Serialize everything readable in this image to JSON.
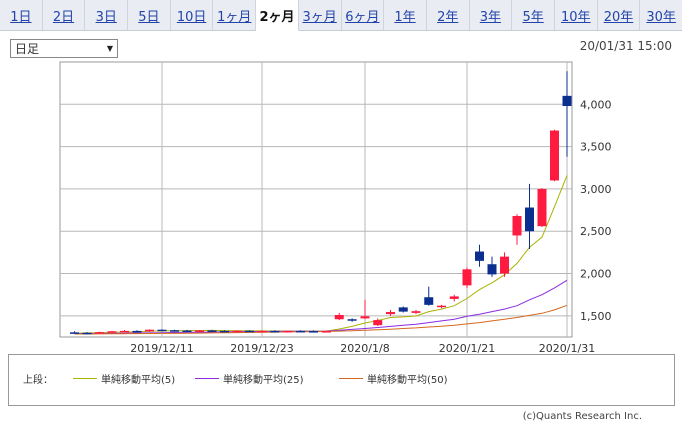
{
  "tabs": [
    {
      "label": "1日",
      "active": false
    },
    {
      "label": "2日",
      "active": false
    },
    {
      "label": "3日",
      "active": false
    },
    {
      "label": "5日",
      "active": false
    },
    {
      "label": "10日",
      "active": false
    },
    {
      "label": "1ヶ月",
      "active": false
    },
    {
      "label": "2ヶ月",
      "active": true
    },
    {
      "label": "3ヶ月",
      "active": false
    },
    {
      "label": "6ヶ月",
      "active": false
    },
    {
      "label": "1年",
      "active": false
    },
    {
      "label": "2年",
      "active": false
    },
    {
      "label": "3年",
      "active": false
    },
    {
      "label": "5年",
      "active": false
    },
    {
      "label": "10年",
      "active": false
    },
    {
      "label": "20年",
      "active": false
    },
    {
      "label": "30年",
      "active": false
    }
  ],
  "period_select": {
    "value": "日足"
  },
  "timestamp": "20/01/31 15:00",
  "legend": {
    "prefix": "上段：",
    "items": [
      {
        "label": "単純移動平均(5)",
        "color": "#a8b400"
      },
      {
        "label": "単純移動平均(25)",
        "color": "#8a2be2"
      },
      {
        "label": "単純移動平均(50)",
        "color": "#d2691e"
      }
    ]
  },
  "copyright": "(c)Quants Research Inc.",
  "colors": {
    "up": "#ff1a40",
    "down": "#0a2f8f",
    "grid": "#b8b8b8"
  },
  "chart_data": {
    "type": "candlestick",
    "x_tick_labels": [
      "2019/12/11",
      "2019/12/23",
      "2020/1/8",
      "2020/1/21",
      "2020/1/31"
    ],
    "x_tick_dates": [
      "2019/12/11",
      "2019/12/23",
      "2020/1/8",
      "2020/1/21",
      "2020/1/31"
    ],
    "y_ticks": [
      1500,
      2000,
      2500,
      3000,
      3500,
      4000
    ],
    "y_tick_labels": [
      "1,500",
      "2,000",
      "2,500",
      "3,000",
      "3,500",
      "4,000"
    ],
    "ylim": [
      1250,
      4500
    ],
    "grid": true,
    "candles": [
      {
        "date": "2019/12/02",
        "open": 1305,
        "high": 1318,
        "low": 1298,
        "close": 1300
      },
      {
        "date": "2019/12/03",
        "open": 1300,
        "high": 1308,
        "low": 1292,
        "close": 1296
      },
      {
        "date": "2019/12/04",
        "open": 1296,
        "high": 1312,
        "low": 1292,
        "close": 1308
      },
      {
        "date": "2019/12/05",
        "open": 1308,
        "high": 1322,
        "low": 1300,
        "close": 1318
      },
      {
        "date": "2019/12/06",
        "open": 1318,
        "high": 1332,
        "low": 1310,
        "close": 1322
      },
      {
        "date": "2019/12/09",
        "open": 1322,
        "high": 1330,
        "low": 1312,
        "close": 1316
      },
      {
        "date": "2019/12/10",
        "open": 1316,
        "high": 1340,
        "low": 1312,
        "close": 1336
      },
      {
        "date": "2019/12/11",
        "open": 1336,
        "high": 1342,
        "low": 1324,
        "close": 1330
      },
      {
        "date": "2019/12/12",
        "open": 1330,
        "high": 1336,
        "low": 1322,
        "close": 1326
      },
      {
        "date": "2019/12/13",
        "open": 1326,
        "high": 1334,
        "low": 1318,
        "close": 1322
      },
      {
        "date": "2019/12/16",
        "open": 1322,
        "high": 1332,
        "low": 1316,
        "close": 1328
      },
      {
        "date": "2019/12/17",
        "open": 1328,
        "high": 1334,
        "low": 1318,
        "close": 1322
      },
      {
        "date": "2019/12/18",
        "open": 1322,
        "high": 1330,
        "low": 1314,
        "close": 1318
      },
      {
        "date": "2019/12/19",
        "open": 1318,
        "high": 1328,
        "low": 1312,
        "close": 1324
      },
      {
        "date": "2019/12/20",
        "open": 1324,
        "high": 1330,
        "low": 1316,
        "close": 1320
      },
      {
        "date": "2019/12/23",
        "open": 1320,
        "high": 1328,
        "low": 1314,
        "close": 1322
      },
      {
        "date": "2019/12/24",
        "open": 1322,
        "high": 1330,
        "low": 1316,
        "close": 1318
      },
      {
        "date": "2019/12/25",
        "open": 1318,
        "high": 1326,
        "low": 1312,
        "close": 1322
      },
      {
        "date": "2019/12/26",
        "open": 1322,
        "high": 1330,
        "low": 1316,
        "close": 1320
      },
      {
        "date": "2019/12/27",
        "open": 1320,
        "high": 1328,
        "low": 1314,
        "close": 1318
      },
      {
        "date": "2019/12/30",
        "open": 1318,
        "high": 1326,
        "low": 1312,
        "close": 1320
      },
      {
        "date": "2020/1/6",
        "open": 1460,
        "high": 1535,
        "low": 1450,
        "close": 1510
      },
      {
        "date": "2020/1/7",
        "open": 1460,
        "high": 1470,
        "low": 1430,
        "close": 1445
      },
      {
        "date": "2020/1/8",
        "open": 1470,
        "high": 1690,
        "low": 1460,
        "close": 1495
      },
      {
        "date": "2020/1/9",
        "open": 1390,
        "high": 1470,
        "low": 1380,
        "close": 1450
      },
      {
        "date": "2020/1/10",
        "open": 1520,
        "high": 1570,
        "low": 1500,
        "close": 1545
      },
      {
        "date": "2020/1/14",
        "open": 1600,
        "high": 1610,
        "low": 1540,
        "close": 1550
      },
      {
        "date": "2020/1/15",
        "open": 1535,
        "high": 1570,
        "low": 1520,
        "close": 1555
      },
      {
        "date": "2020/1/16",
        "open": 1720,
        "high": 1845,
        "low": 1620,
        "close": 1630
      },
      {
        "date": "2020/1/17",
        "open": 1605,
        "high": 1630,
        "low": 1590,
        "close": 1620
      },
      {
        "date": "2020/1/20",
        "open": 1700,
        "high": 1750,
        "low": 1670,
        "close": 1730
      },
      {
        "date": "2020/1/21",
        "open": 1860,
        "high": 2070,
        "low": 1830,
        "close": 2050
      },
      {
        "date": "2020/1/22",
        "open": 2260,
        "high": 2340,
        "low": 2080,
        "close": 2150
      },
      {
        "date": "2020/1/23",
        "open": 2110,
        "high": 2200,
        "low": 1960,
        "close": 1990
      },
      {
        "date": "2020/1/24",
        "open": 2000,
        "high": 2250,
        "low": 1960,
        "close": 2200
      },
      {
        "date": "2020/1/27",
        "open": 2450,
        "high": 2700,
        "low": 2340,
        "close": 2680
      },
      {
        "date": "2020/1/28",
        "open": 2780,
        "high": 3060,
        "low": 2290,
        "close": 2500
      },
      {
        "date": "2020/1/29",
        "open": 2560,
        "high": 3010,
        "low": 2550,
        "close": 3000
      },
      {
        "date": "2020/1/30",
        "open": 3100,
        "high": 3700,
        "low": 3090,
        "close": 3690
      },
      {
        "date": "2020/1/31",
        "open": 4100,
        "high": 4390,
        "low": 3380,
        "close": 3980
      }
    ],
    "moving_averages": [
      {
        "name": "単純移動平均(5)",
        "color": "#a8b400",
        "values": [
          1295,
          1298,
          1300,
          1304,
          1309,
          1313,
          1318,
          1322,
          1325,
          1326,
          1327,
          1328,
          1326,
          1324,
          1323,
          1322,
          1321,
          1320,
          1320,
          1320,
          1320,
          1345,
          1375,
          1415,
          1445,
          1480,
          1488,
          1498,
          1550,
          1580,
          1620,
          1705,
          1810,
          1890,
          1985,
          2120,
          2310,
          2430,
          2790,
          3160
        ]
      },
      {
        "name": "単純移動平均(25)",
        "color": "#8a2be2",
        "values": [
          1290,
          1291,
          1292,
          1293,
          1295,
          1297,
          1299,
          1301,
          1303,
          1305,
          1307,
          1309,
          1311,
          1313,
          1314,
          1315,
          1316,
          1317,
          1318,
          1319,
          1320,
          1330,
          1340,
          1350,
          1362,
          1375,
          1388,
          1400,
          1420,
          1440,
          1460,
          1495,
          1520,
          1550,
          1580,
          1620,
          1690,
          1750,
          1830,
          1920
        ]
      },
      {
        "name": "単純移動平均(50)",
        "color": "#d2691e",
        "values": [
          1285,
          1286,
          1287,
          1288,
          1289,
          1290,
          1291,
          1292,
          1293,
          1294,
          1296,
          1298,
          1300,
          1302,
          1304,
          1306,
          1308,
          1310,
          1312,
          1314,
          1316,
          1320,
          1325,
          1330,
          1335,
          1342,
          1350,
          1358,
          1368,
          1378,
          1388,
          1405,
          1420,
          1440,
          1460,
          1480,
          1505,
          1530,
          1570,
          1625
        ]
      }
    ]
  }
}
